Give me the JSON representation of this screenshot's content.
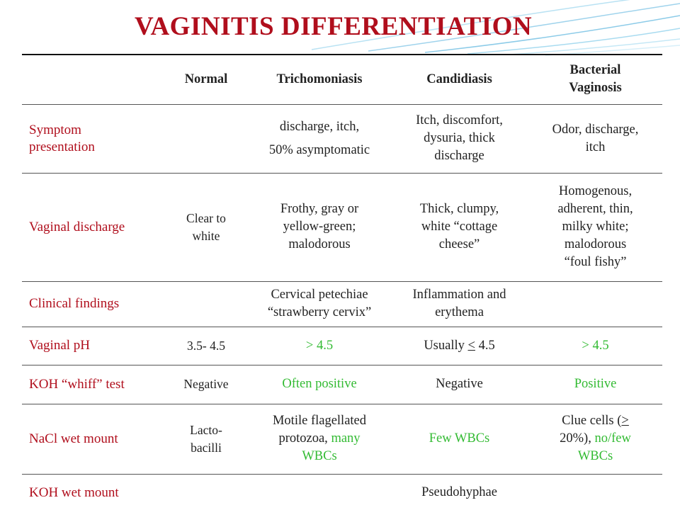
{
  "slide": {
    "title": "VAGINITIS DIFFERENTIATION"
  },
  "table": {
    "headers": {
      "normal": "Normal",
      "trich": "Trichomoniasis",
      "candida": "Candidiasis",
      "bv_1": "Bacterial",
      "bv_2": "Vaginosis"
    },
    "rows": {
      "symptom": {
        "label_1": "Symptom",
        "label_2": "presentation",
        "normal": "",
        "trich_1": "discharge, itch,",
        "trich_2": "50% asymptomatic",
        "candida_1": "Itch, discomfort,",
        "candida_2": "dysuria, thick",
        "candida_3": "discharge",
        "bv_1": "Odor, discharge,",
        "bv_2": "itch"
      },
      "discharge": {
        "label": "Vaginal discharge",
        "normal_1": "Clear to",
        "normal_2": "white",
        "trich_1": "Frothy, gray or",
        "trich_2": "yellow-green;",
        "trich_3": "malodorous",
        "candida_1": "Thick, clumpy,",
        "candida_2": "white “cottage",
        "candida_3": "cheese”",
        "bv_1": "Homogenous,",
        "bv_2": "adherent, thin,",
        "bv_3": "milky white;",
        "bv_4": "malodorous",
        "bv_5": "“foul fishy”"
      },
      "clinical": {
        "label": "Clinical findings",
        "normal": "",
        "trich_1": "Cervical petechiae",
        "trich_2": "“strawberry cervix”",
        "candida_1": "Inflammation and",
        "candida_2": "erythema",
        "bv": ""
      },
      "ph": {
        "label": "Vaginal pH",
        "normal": "3.5- 4.5",
        "trich": "> 4.5",
        "candida_prefix": "Usually ",
        "candida_symbol": "<",
        "candida_value": " 4.5",
        "bv": "> 4.5"
      },
      "koh_whiff": {
        "label": "KOH “whiff” test",
        "normal": "Negative",
        "trich": "Often positive",
        "candida": "Negative",
        "bv": "Positive"
      },
      "nacl": {
        "label": "NaCl wet mount",
        "normal_1": "Lacto-",
        "normal_2": "bacilli",
        "trich_1": "Motile flagellated",
        "trich_2a": "protozoa, ",
        "trich_2b": "many",
        "trich_3": "WBCs",
        "candida": "Few WBCs",
        "bv_1a": "Clue cells (",
        "bv_1b": ">",
        "bv_2a": "20%), ",
        "bv_2b": "no/few",
        "bv_3": "WBCs"
      },
      "koh_mount": {
        "label": "KOH wet mount",
        "normal": "",
        "trich": "",
        "candida": "Pseudohyphae",
        "bv": ""
      }
    }
  },
  "colors": {
    "title_red": "#b00e1c",
    "highlight_green": "#33bb33",
    "swoosh_blue": "#9fd3ec"
  }
}
